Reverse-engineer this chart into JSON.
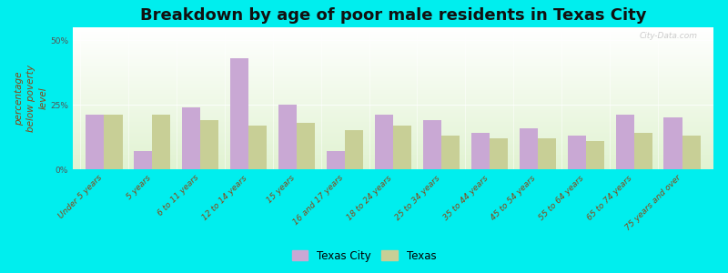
{
  "title": "Breakdown by age of poor male residents in Texas City",
  "ylabel": "percentage\nbelow poverty\nlevel",
  "categories": [
    "Under 5 years",
    "5 years",
    "6 to 11 years",
    "12 to 14 years",
    "15 years",
    "16 and 17 years",
    "18 to 24 years",
    "25 to 34 years",
    "35 to 44 years",
    "45 to 54 years",
    "55 to 64 years",
    "65 to 74 years",
    "75 years and over"
  ],
  "texas_city": [
    21,
    7,
    24,
    43,
    25,
    7,
    21,
    19,
    14,
    16,
    13,
    21,
    20
  ],
  "texas": [
    21,
    21,
    19,
    17,
    18,
    15,
    17,
    13,
    12,
    12,
    11,
    14,
    13
  ],
  "ylim": [
    0,
    55
  ],
  "ytick_labels": [
    "0%",
    "25%",
    "50%"
  ],
  "bar_color_tc": "#c9a8d4",
  "bar_color_tx": "#c8cf96",
  "figure_bg": "#00eeee",
  "legend_tc": "Texas City",
  "legend_tx": "Texas",
  "bar_width": 0.38,
  "title_fontsize": 13,
  "axis_label_fontsize": 7.5,
  "tick_fontsize": 6.5,
  "watermark": "City-Data.com"
}
